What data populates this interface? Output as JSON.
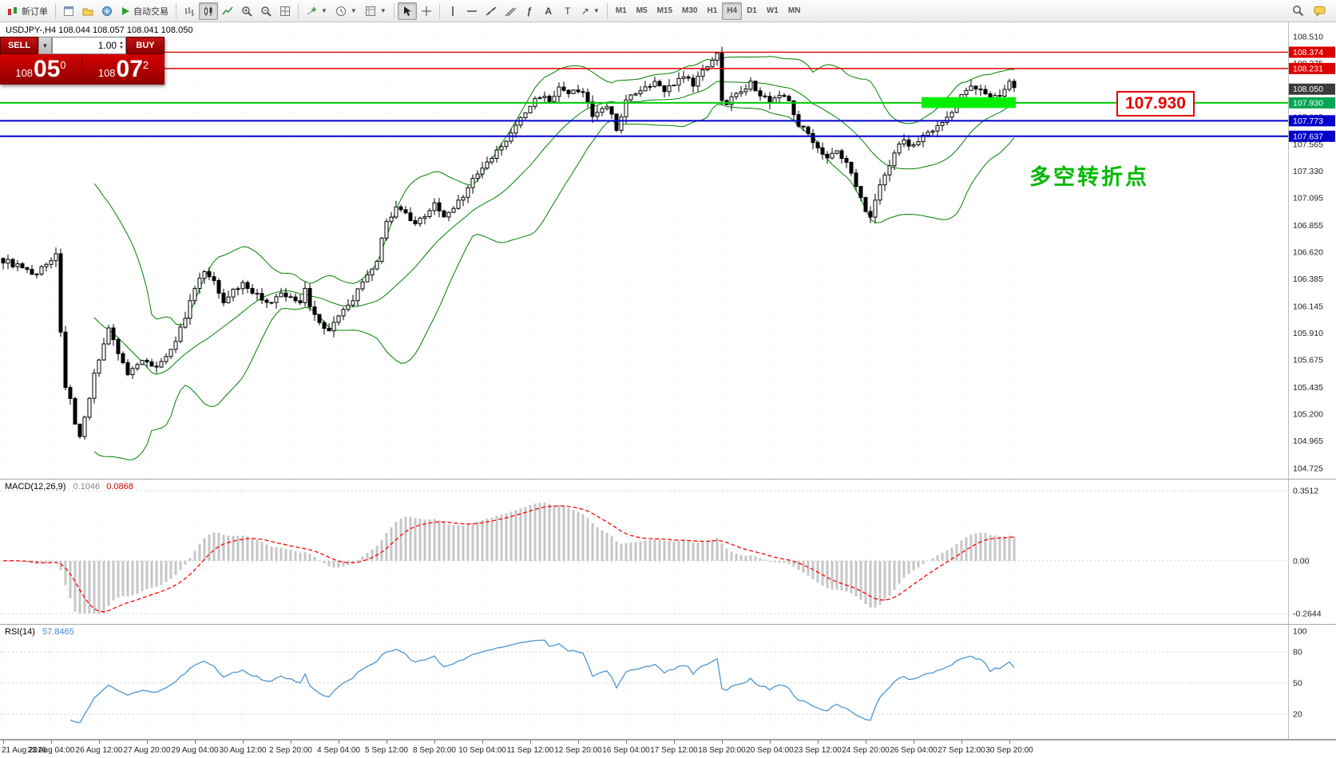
{
  "toolbar": {
    "groups": [
      {
        "items": [
          {
            "name": "new-order-button",
            "icon": "new-order",
            "label": "新订单"
          }
        ]
      },
      {
        "items": [
          {
            "name": "chart-window-button",
            "icon": "chart-window"
          },
          {
            "name": "profiles-button",
            "icon": "profiles"
          },
          {
            "name": "terminal-button",
            "icon": "terminal"
          },
          {
            "name": "auto-trading-button",
            "icon": "play",
            "label": "自动交易"
          }
        ]
      },
      {
        "items": [
          {
            "name": "bar-chart-mode-button",
            "icon": "bars"
          },
          {
            "name": "candlestick-mode-button",
            "icon": "candles",
            "active": true
          },
          {
            "name": "line-chart-mode-button",
            "icon": "linechart"
          },
          {
            "name": "zoom-in-button",
            "icon": "zoom-in"
          },
          {
            "name": "zoom-out-button",
            "icon": "zoom-out"
          },
          {
            "name": "tile-windows-button",
            "icon": "grid"
          }
        ]
      },
      {
        "items": [
          {
            "name": "indicators-button",
            "icon": "indicator",
            "caret": true
          },
          {
            "name": "periods-button",
            "icon": "clock",
            "caret": true
          },
          {
            "name": "templates-button",
            "icon": "template",
            "caret": true
          }
        ]
      },
      {
        "items": [
          {
            "name": "cursor-button",
            "icon": "cursor",
            "active": true
          },
          {
            "name": "crosshair-button",
            "icon": "crosshair"
          }
        ]
      },
      {
        "items": [
          {
            "name": "vertical-line-button",
            "icon": "vline"
          },
          {
            "name": "horizontal-line-button",
            "icon": "hline"
          },
          {
            "name": "trendline-button",
            "icon": "trendline"
          },
          {
            "name": "channel-button",
            "icon": "channel"
          },
          {
            "name": "fibonacci-button",
            "icon": "fibo"
          },
          {
            "name": "text-button",
            "icon": "text"
          },
          {
            "name": "label-button",
            "icon": "label"
          },
          {
            "name": "arrows-button",
            "icon": "arrows",
            "caret": true
          }
        ]
      },
      {
        "items": [
          {
            "name": "tf-m1-button",
            "tf": "M1"
          },
          {
            "name": "tf-m5-button",
            "tf": "M5"
          },
          {
            "name": "tf-m15-button",
            "tf": "M15"
          },
          {
            "name": "tf-m30-button",
            "tf": "M30"
          },
          {
            "name": "tf-h1-button",
            "tf": "H1"
          },
          {
            "name": "tf-h4-button",
            "tf": "H4",
            "active": true
          },
          {
            "name": "tf-d1-button",
            "tf": "D1"
          },
          {
            "name": "tf-w1-button",
            "tf": "W1"
          },
          {
            "name": "tf-mn-button",
            "tf": "MN"
          }
        ]
      }
    ],
    "right_items": [
      {
        "name": "search-button",
        "icon": "search"
      },
      {
        "name": "community-button",
        "icon": "bubble"
      }
    ]
  },
  "chart": {
    "symbol_header": "USDJPY-,H4  108.044 108.057 108.041 108.050",
    "callout_label": "107.930",
    "annotation_text": "多空转折点",
    "annotation_color": "#00b800",
    "callout_color": "#e60000",
    "trade_panel": {
      "sell_label": "SELL",
      "buy_label": "BUY",
      "volume": "1.00",
      "sell_price_base": "108",
      "sell_price_main": "05",
      "sell_price_sup": "0",
      "buy_price_base": "108",
      "buy_price_main": "07",
      "buy_price_sup": "2"
    }
  },
  "chart_data": {
    "type": "candlestick",
    "symbol": "USDJPY-",
    "timeframe": "H4",
    "ohlc": {
      "open": "108.044",
      "high": "108.057",
      "low": "108.041",
      "close": "108.050"
    },
    "price_axis": {
      "max": 108.51,
      "min": 104.725,
      "labels": [
        "108.510",
        "108.275",
        "108.040",
        "107.805",
        "107.565",
        "107.330",
        "107.095",
        "106.855",
        "106.620",
        "106.385",
        "106.145",
        "105.910",
        "105.675",
        "105.435",
        "105.200",
        "104.965",
        "104.725"
      ]
    },
    "current_price": {
      "value": "108.050",
      "badge_bg": "#3a3a3a"
    },
    "hlines": [
      {
        "price": 108.374,
        "label": "108.374",
        "color": "#e00000",
        "width": 1.4,
        "badge_bg": "#dd0000"
      },
      {
        "price": 108.231,
        "label": "108.231",
        "color": "#e00000",
        "width": 1.4,
        "badge_bg": "#dd0000"
      },
      {
        "price": 107.93,
        "label": "107.930",
        "color": "#00cc00",
        "width": 2,
        "badge_bg": "#00a651"
      },
      {
        "price": 107.773,
        "label": "107.773",
        "color": "#0000d0",
        "width": 2,
        "badge_bg": "#0000cc"
      },
      {
        "price": 107.637,
        "label": "107.637",
        "color": "#0000d0",
        "width": 2,
        "badge_bg": "#0000cc"
      }
    ],
    "highlight_box": {
      "from_index": 192,
      "to_index": 211,
      "price_top": 107.98,
      "price_bottom": 107.885,
      "color": "#00ee00"
    },
    "candle_style": {
      "bull_fill": "#ffffff",
      "bear_fill": "#000000",
      "outline": "#000000"
    },
    "bollinger": {
      "period": 20,
      "deviation": 2,
      "color": "#008000"
    },
    "price_trajectory": [
      [
        0,
        106.55
      ],
      [
        3,
        106.5
      ],
      [
        6,
        106.42
      ],
      [
        8,
        106.48
      ],
      [
        10,
        106.56
      ],
      [
        11,
        106.62
      ],
      [
        12,
        105.9
      ],
      [
        13,
        105.45
      ],
      [
        14,
        105.35
      ],
      [
        15,
        105.1
      ],
      [
        16,
        104.98
      ],
      [
        17,
        105.15
      ],
      [
        18,
        105.32
      ],
      [
        19,
        105.55
      ],
      [
        20,
        105.7
      ],
      [
        22,
        105.95
      ],
      [
        24,
        105.75
      ],
      [
        26,
        105.55
      ],
      [
        28,
        105.62
      ],
      [
        30,
        105.68
      ],
      [
        32,
        105.6
      ],
      [
        34,
        105.72
      ],
      [
        36,
        105.85
      ],
      [
        38,
        106.05
      ],
      [
        40,
        106.3
      ],
      [
        42,
        106.45
      ],
      [
        44,
        106.35
      ],
      [
        46,
        106.2
      ],
      [
        48,
        106.28
      ],
      [
        50,
        106.35
      ],
      [
        52,
        106.28
      ],
      [
        54,
        106.2
      ],
      [
        56,
        106.18
      ],
      [
        58,
        106.25
      ],
      [
        60,
        106.22
      ],
      [
        62,
        106.18
      ],
      [
        63,
        106.32
      ],
      [
        64,
        106.15
      ],
      [
        66,
        106.0
      ],
      [
        68,
        105.95
      ],
      [
        70,
        106.05
      ],
      [
        72,
        106.15
      ],
      [
        74,
        106.28
      ],
      [
        76,
        106.4
      ],
      [
        78,
        106.55
      ],
      [
        80,
        106.9
      ],
      [
        82,
        107.0
      ],
      [
        84,
        106.95
      ],
      [
        86,
        106.85
      ],
      [
        88,
        106.95
      ],
      [
        90,
        107.05
      ],
      [
        92,
        106.92
      ],
      [
        94,
        107.02
      ],
      [
        96,
        107.12
      ],
      [
        98,
        107.25
      ],
      [
        100,
        107.35
      ],
      [
        102,
        107.45
      ],
      [
        104,
        107.55
      ],
      [
        106,
        107.65
      ],
      [
        108,
        107.8
      ],
      [
        110,
        107.9
      ],
      [
        112,
        108.0
      ],
      [
        114,
        107.95
      ],
      [
        116,
        108.05
      ],
      [
        118,
        108.0
      ],
      [
        120,
        108.05
      ],
      [
        122,
        107.95
      ],
      [
        123,
        107.8
      ],
      [
        125,
        107.9
      ],
      [
        127,
        107.85
      ],
      [
        128,
        107.7
      ],
      [
        130,
        107.95
      ],
      [
        132,
        108.0
      ],
      [
        134,
        108.05
      ],
      [
        136,
        108.1
      ],
      [
        138,
        108.05
      ],
      [
        140,
        108.1
      ],
      [
        142,
        108.15
      ],
      [
        144,
        108.1
      ],
      [
        146,
        108.2
      ],
      [
        148,
        108.32
      ],
      [
        149,
        108.38
      ],
      [
        150,
        107.95
      ],
      [
        151,
        107.9
      ],
      [
        152,
        108.0
      ],
      [
        154,
        108.05
      ],
      [
        156,
        108.1
      ],
      [
        158,
        108.0
      ],
      [
        160,
        107.95
      ],
      [
        162,
        108.0
      ],
      [
        164,
        107.95
      ],
      [
        166,
        107.75
      ],
      [
        168,
        107.65
      ],
      [
        170,
        107.55
      ],
      [
        172,
        107.45
      ],
      [
        174,
        107.5
      ],
      [
        176,
        107.4
      ],
      [
        178,
        107.2
      ],
      [
        180,
        107.0
      ],
      [
        181,
        106.95
      ],
      [
        182,
        107.1
      ],
      [
        184,
        107.3
      ],
      [
        186,
        107.5
      ],
      [
        188,
        107.6
      ],
      [
        190,
        107.55
      ],
      [
        192,
        107.65
      ],
      [
        194,
        107.7
      ],
      [
        196,
        107.75
      ],
      [
        198,
        107.85
      ],
      [
        200,
        108.0
      ],
      [
        202,
        108.1
      ],
      [
        204,
        108.05
      ],
      [
        206,
        107.95
      ],
      [
        208,
        108.0
      ],
      [
        210,
        108.1
      ],
      [
        211,
        108.05
      ]
    ],
    "macd": {
      "title": "MACD(12,26,9)",
      "value_main": "0.1046",
      "value_signal": "0.0868",
      "fast": 12,
      "slow": 26,
      "signal": 9,
      "max": 0.3512,
      "min": -0.2644,
      "axis_labels": [
        "0.3512",
        "0.00",
        "-0.2644"
      ],
      "histogram_color": "#c6c6c6",
      "signal_color": "#ff0000"
    },
    "rsi": {
      "title": "RSI(14)",
      "value": "57.8465",
      "period": 14,
      "max": 100,
      "min": 0,
      "levels": [
        80,
        50,
        20
      ],
      "axis_labels": [
        "100",
        "80",
        "50",
        "20"
      ],
      "line_color": "#4a96d2"
    },
    "time_labels": [
      "21 Aug 2019",
      "23 Aug 04:00",
      "26 Aug 12:00",
      "27 Aug 20:00",
      "29 Aug 04:00",
      "30 Aug 12:00",
      "2 Sep 20:00",
      "4 Sep 04:00",
      "5 Sep 12:00",
      "8 Sep 20:00",
      "10 Sep 04:00",
      "11 Sep 12:00",
      "12 Sep 20:00",
      "16 Sep 04:00",
      "17 Sep 12:00",
      "18 Sep 20:00",
      "20 Sep 04:00",
      "23 Sep 12:00",
      "24 Sep 20:00",
      "26 Sep 04:00",
      "27 Sep 12:00",
      "30 Sep 20:00"
    ]
  }
}
